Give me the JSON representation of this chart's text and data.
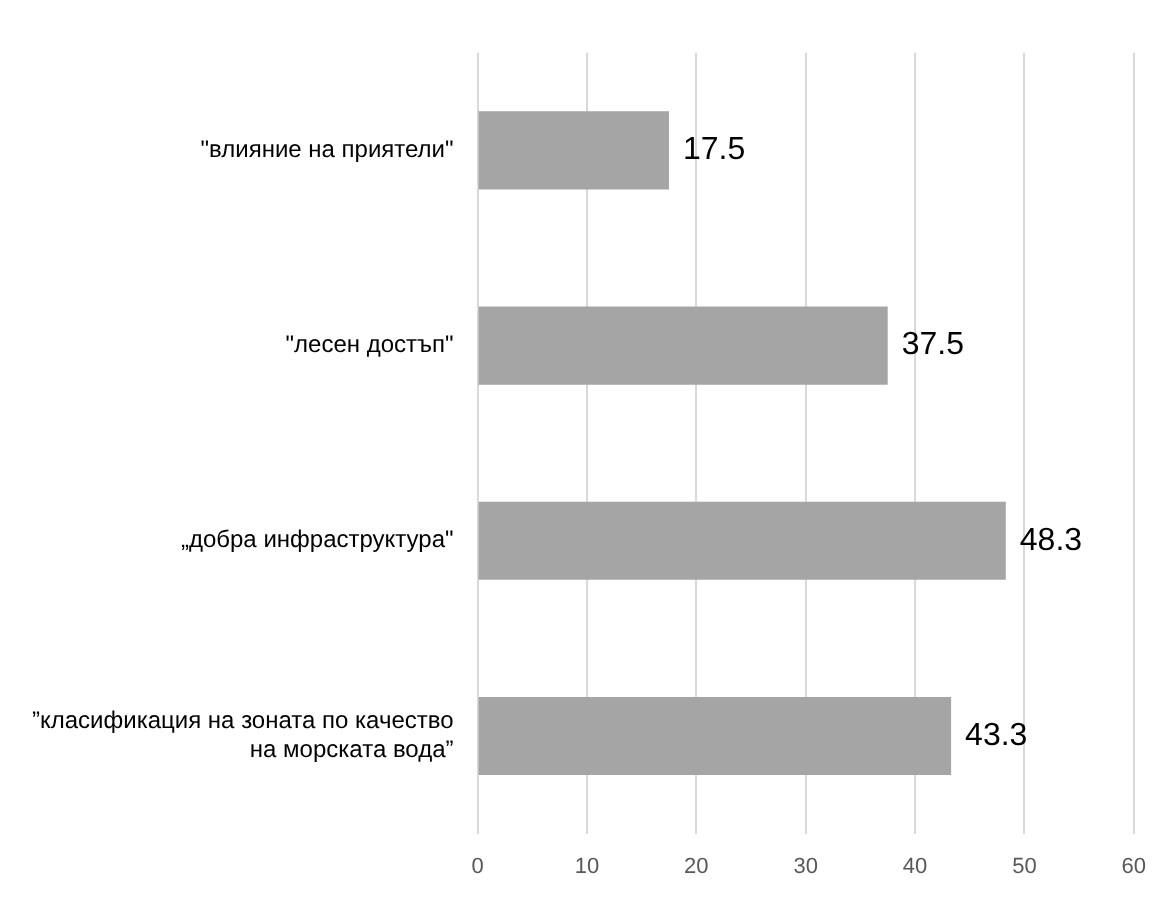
{
  "chart_data": {
    "type": "bar",
    "orientation": "horizontal",
    "categories": [
      "\"влияние на приятели\"",
      "\"лесен достъп\"",
      "„добра инфраструктура\"",
      "”класификация на зоната по качество на морската вода”"
    ],
    "values": [
      17.5,
      37.5,
      48.3,
      43.3
    ],
    "color": "#a5a5a5",
    "xlim": [
      0,
      60
    ],
    "xticks": [
      0,
      10,
      20,
      30,
      40,
      50,
      60
    ],
    "grid": "x",
    "data_labels": true
  }
}
